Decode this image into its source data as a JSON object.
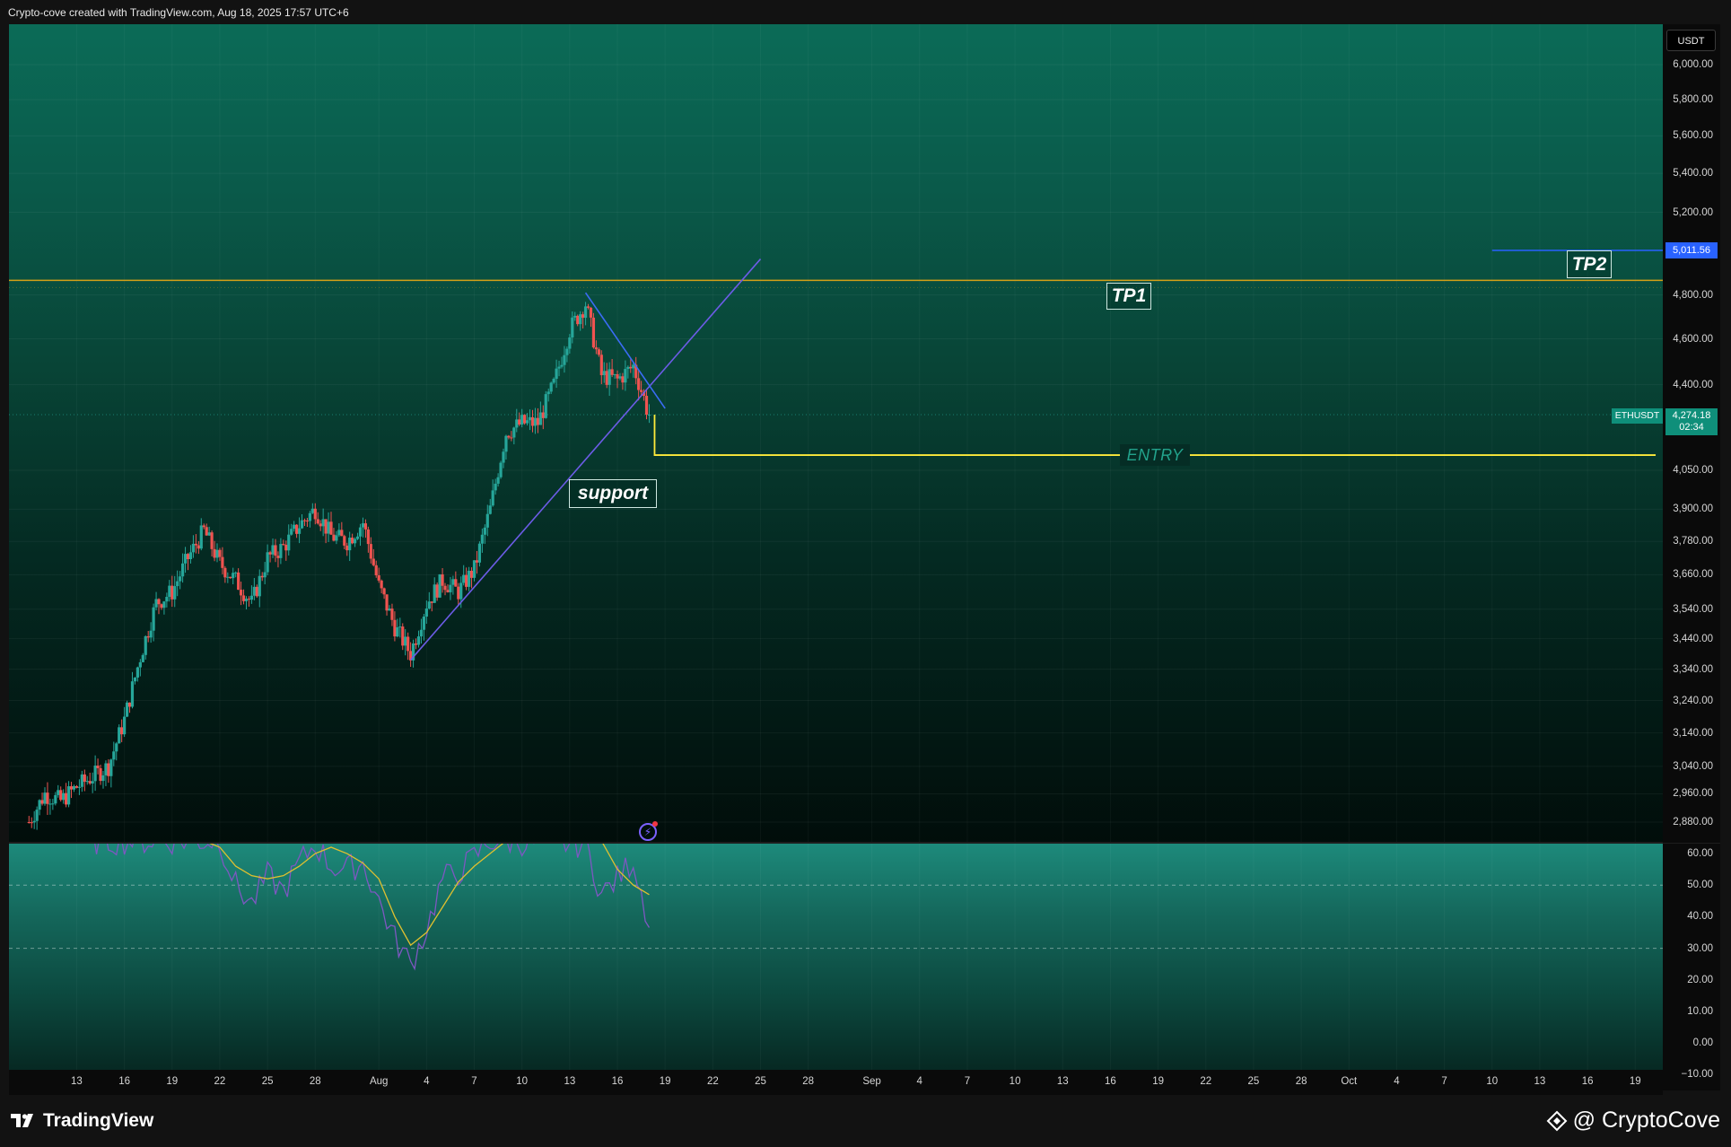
{
  "header": {
    "attribution": "Crypto-cove created with TradingView.com, Aug 18, 2025 17:57 UTC+6"
  },
  "price_axis": {
    "currency": "USDT",
    "labels": [
      "6,000.00",
      "5,800.00",
      "5,600.00",
      "5,400.00",
      "5,200.00",
      "4,800.00",
      "4,600.00",
      "4,400.00",
      "4,050.00",
      "3,900.00",
      "3,780.00",
      "3,660.00",
      "3,540.00",
      "3,440.00",
      "3,340.00",
      "3,240.00",
      "3,140.00",
      "3,040.00",
      "2,960.00",
      "2,880.00"
    ],
    "tp2_badge": "5,011.56",
    "symbol": "ETHUSDT",
    "last_price": "4,274.18",
    "countdown": "02:34"
  },
  "osc_axis": {
    "labels": [
      "60.00",
      "50.00",
      "40.00",
      "30.00",
      "20.00",
      "10.00",
      "0.00",
      "−10.00"
    ]
  },
  "time_axis": {
    "labels": [
      "13",
      "16",
      "19",
      "22",
      "25",
      "28",
      "Aug",
      "4",
      "7",
      "10",
      "13",
      "16",
      "19",
      "22",
      "25",
      "28",
      "Sep",
      "4",
      "7",
      "10",
      "13",
      "16",
      "19",
      "22",
      "25",
      "28",
      "Oct",
      "4",
      "7",
      "10",
      "13",
      "16",
      "19"
    ]
  },
  "annotations": {
    "tp1": "TP1",
    "tp2": "TP2",
    "entry": "ENTRY",
    "support": "support"
  },
  "footer": {
    "brand_left": "TradingView",
    "brand_right": "@ CryptoCove"
  },
  "colors": {
    "up": "#26a69a",
    "down": "#ef5350",
    "tp1_line": "#d4a017",
    "tp2_line": "#2962ff",
    "entry_line": "#ffeb3b",
    "trend_line": "#6c5ce7",
    "rsi": "#7e57c2",
    "rsi_ma": "#e0c02f"
  },
  "chart_data": {
    "type": "candlestick",
    "symbol": "ETHUSDT",
    "interval_hint": "4h",
    "ylim": [
      2840,
      6100
    ],
    "x_range": [
      "2025-07-11",
      "2025-10-20"
    ],
    "anchors": [
      [
        "2025-07-10",
        2880
      ],
      [
        "2025-07-11",
        2960
      ],
      [
        "2025-07-12",
        2940
      ],
      [
        "2025-07-13",
        2980
      ],
      [
        "2025-07-15",
        3040
      ],
      [
        "2025-07-16",
        3180
      ],
      [
        "2025-07-17",
        3380
      ],
      [
        "2025-07-18",
        3560
      ],
      [
        "2025-07-19",
        3600
      ],
      [
        "2025-07-20",
        3720
      ],
      [
        "2025-07-21",
        3820
      ],
      [
        "2025-07-22",
        3700
      ],
      [
        "2025-07-23",
        3640
      ],
      [
        "2025-07-24",
        3560
      ],
      [
        "2025-07-25",
        3720
      ],
      [
        "2025-07-26",
        3760
      ],
      [
        "2025-07-27",
        3840
      ],
      [
        "2025-07-28",
        3900
      ],
      [
        "2025-07-29",
        3800
      ],
      [
        "2025-07-30",
        3780
      ],
      [
        "2025-07-31",
        3850
      ],
      [
        "2025-08-01",
        3620
      ],
      [
        "2025-08-02",
        3480
      ],
      [
        "2025-08-03",
        3390
      ],
      [
        "2025-08-04",
        3560
      ],
      [
        "2025-08-05",
        3640
      ],
      [
        "2025-08-06",
        3600
      ],
      [
        "2025-08-07",
        3680
      ],
      [
        "2025-08-08",
        3900
      ],
      [
        "2025-08-09",
        4200
      ],
      [
        "2025-08-10",
        4240
      ],
      [
        "2025-08-11",
        4240
      ],
      [
        "2025-08-12",
        4400
      ],
      [
        "2025-08-13",
        4640
      ],
      [
        "2025-08-14",
        4760
      ],
      [
        "2025-08-15",
        4440
      ],
      [
        "2025-08-16",
        4420
      ],
      [
        "2025-08-17",
        4480
      ],
      [
        "2025-08-18",
        4274.18
      ]
    ],
    "levels": {
      "tp1": 4868,
      "tp2": 5011.56,
      "entry": 4110,
      "last": 4274.18
    },
    "trendlines": [
      {
        "name": "support",
        "from": [
          "2025-08-03",
          3370
        ],
        "to": [
          "2025-08-25",
          4970
        ]
      },
      {
        "name": "resistance",
        "from": [
          "2025-08-14",
          4810
        ],
        "to": [
          "2025-08-19",
          4300
        ]
      }
    ],
    "oscillator": {
      "ylim": [
        -15,
        62
      ],
      "levels": [
        50,
        30
      ],
      "rsi": [
        [
          "2025-07-14",
          64
        ],
        [
          "2025-07-22",
          64
        ],
        [
          "2025-07-23",
          50
        ],
        [
          "2025-07-24",
          44
        ],
        [
          "2025-07-25",
          53
        ],
        [
          "2025-07-26",
          48
        ],
        [
          "2025-07-27",
          57
        ],
        [
          "2025-07-28",
          63
        ],
        [
          "2025-07-29",
          56
        ],
        [
          "2025-07-30",
          55
        ],
        [
          "2025-07-31",
          57
        ],
        [
          "2025-08-01",
          45
        ],
        [
          "2025-08-02",
          33
        ],
        [
          "2025-08-03",
          25
        ],
        [
          "2025-08-04",
          36
        ],
        [
          "2025-08-05",
          52
        ],
        [
          "2025-08-06",
          54
        ],
        [
          "2025-08-07",
          59
        ],
        [
          "2025-08-08",
          64
        ],
        [
          "2025-08-14",
          63
        ],
        [
          "2025-08-15",
          47
        ],
        [
          "2025-08-16",
          52
        ],
        [
          "2025-08-17",
          58
        ],
        [
          "2025-08-18",
          38
        ]
      ],
      "ma": [
        [
          "2025-07-21",
          64
        ],
        [
          "2025-07-22",
          62
        ],
        [
          "2025-07-23",
          56
        ],
        [
          "2025-07-24",
          53
        ],
        [
          "2025-07-25",
          52
        ],
        [
          "2025-07-26",
          53
        ],
        [
          "2025-07-27",
          56
        ],
        [
          "2025-07-28",
          60
        ],
        [
          "2025-07-29",
          62
        ],
        [
          "2025-07-30",
          60
        ],
        [
          "2025-07-31",
          57
        ],
        [
          "2025-08-01",
          52
        ],
        [
          "2025-08-02",
          40
        ],
        [
          "2025-08-03",
          31
        ],
        [
          "2025-08-04",
          35
        ],
        [
          "2025-08-05",
          43
        ],
        [
          "2025-08-06",
          51
        ],
        [
          "2025-08-07",
          56
        ],
        [
          "2025-08-08",
          60
        ],
        [
          "2025-08-09",
          64
        ],
        [
          "2025-08-15",
          64
        ],
        [
          "2025-08-16",
          55
        ],
        [
          "2025-08-17",
          50
        ],
        [
          "2025-08-18",
          47
        ]
      ]
    }
  }
}
